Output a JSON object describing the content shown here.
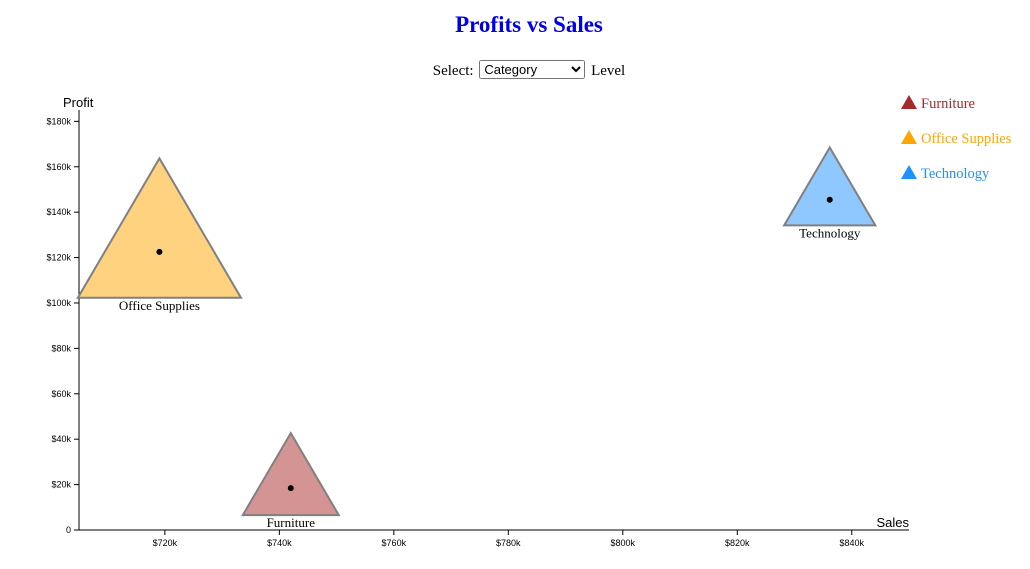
{
  "title": "Profits vs Sales",
  "controls": {
    "select_label": "Select:",
    "level_label": "Level",
    "selected": "Category",
    "options": [
      "Category"
    ]
  },
  "chart_data": {
    "type": "scatter",
    "title": "Profits vs Sales",
    "xlabel": "Sales",
    "ylabel": "Profit",
    "xlim": [
      705000,
      850000
    ],
    "ylim": [
      0,
      185000
    ],
    "x_ticks": [
      720000,
      740000,
      760000,
      780000,
      800000,
      820000,
      840000
    ],
    "x_tick_labels": [
      "$720k",
      "$740k",
      "$760k",
      "$780k",
      "$800k",
      "$820k",
      "$840k"
    ],
    "y_ticks": [
      0,
      20000,
      40000,
      60000,
      80000,
      100000,
      120000,
      140000,
      160000,
      180000
    ],
    "y_tick_labels": [
      "0",
      "$20k",
      "$40k",
      "$60k",
      "$80k",
      "$100k",
      "$120k",
      "$140k",
      "$160k",
      "$180k"
    ],
    "marker": "triangle",
    "legend_position": "top-right",
    "series": [
      {
        "name": "Furniture",
        "x": 741999,
        "y": 18451,
        "color": "#a52a2a",
        "fill": "#d49494",
        "size": 1.0
      },
      {
        "name": "Office Supplies",
        "x": 719047,
        "y": 122491,
        "color": "#ffa500",
        "fill": "#ffd27f",
        "size": 1.7
      },
      {
        "name": "Technology",
        "x": 836154,
        "y": 145455,
        "color": "#1e90ff",
        "fill": "#8fc7ff",
        "size": 0.95
      }
    ]
  }
}
